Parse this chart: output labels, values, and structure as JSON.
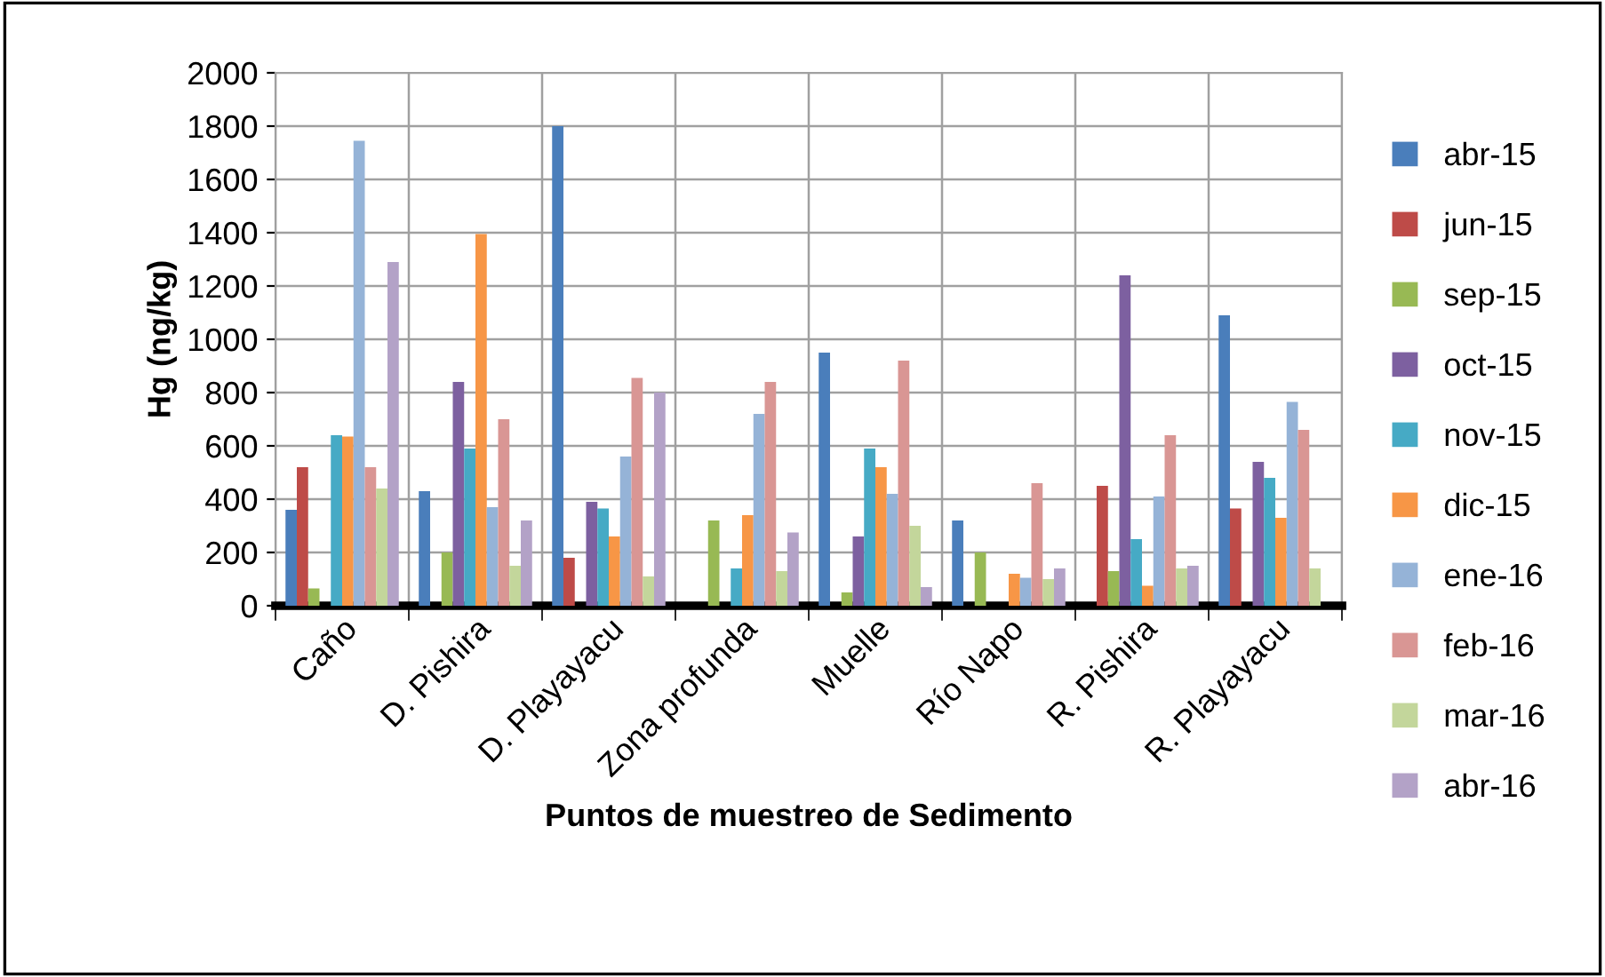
{
  "chart_data": {
    "type": "bar",
    "xlabel": "Puntos de muestreo de Sedimento",
    "ylabel": "Hg (ng/kg)",
    "categories": [
      "Caño",
      "D. Pishira",
      "D. Playayacu",
      "Zona profunda",
      "Muelle",
      "Río Napo",
      "R. Pishira",
      "R. Playayacu"
    ],
    "series": [
      {
        "name": "abr-15",
        "color": "#4a7ebb",
        "values": [
          360,
          430,
          1800,
          null,
          950,
          320,
          null,
          1090
        ]
      },
      {
        "name": "jun-15",
        "color": "#be4b48",
        "values": [
          520,
          null,
          180,
          null,
          null,
          null,
          450,
          365
        ]
      },
      {
        "name": "sep-15",
        "color": "#98b954",
        "values": [
          65,
          200,
          null,
          320,
          50,
          200,
          130,
          null
        ]
      },
      {
        "name": "oct-15",
        "color": "#7d60a0",
        "values": [
          null,
          840,
          390,
          null,
          260,
          null,
          1240,
          540
        ]
      },
      {
        "name": "nov-15",
        "color": "#46aac5",
        "values": [
          640,
          590,
          365,
          140,
          590,
          null,
          250,
          480
        ]
      },
      {
        "name": "dic-15",
        "color": "#f79646",
        "values": [
          635,
          1395,
          260,
          340,
          520,
          120,
          75,
          330
        ]
      },
      {
        "name": "ene-16",
        "color": "#95b3d7",
        "values": [
          1745,
          370,
          560,
          720,
          420,
          105,
          410,
          765
        ]
      },
      {
        "name": "feb-16",
        "color": "#d99694",
        "values": [
          520,
          700,
          855,
          840,
          920,
          460,
          640,
          660
        ]
      },
      {
        "name": "mar-16",
        "color": "#c3d69b",
        "values": [
          440,
          150,
          110,
          130,
          300,
          100,
          140,
          140
        ]
      },
      {
        "name": "abr-16",
        "color": "#b3a2c7",
        "values": [
          1290,
          320,
          800,
          275,
          70,
          140,
          150,
          null
        ]
      }
    ],
    "ylim": [
      0,
      2000
    ],
    "yticks": [
      0,
      200,
      400,
      600,
      800,
      1000,
      1200,
      1400,
      1600,
      1800,
      2000
    ],
    "grid": true,
    "legend": "right"
  }
}
